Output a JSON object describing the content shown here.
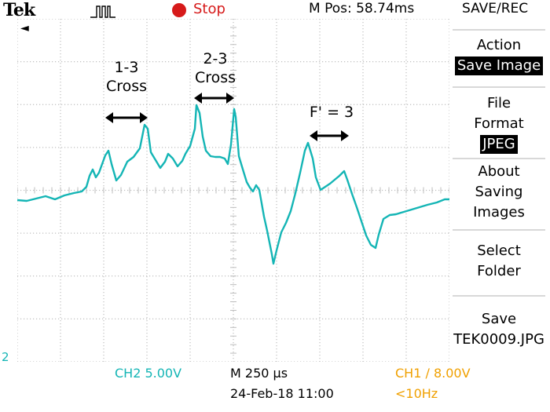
{
  "header": {
    "brand": "Tek",
    "acq_state": "Stop",
    "mpos": "M Pos: 58.74ms",
    "menu_title": "SAVE/REC"
  },
  "annotations": {
    "cross13_line1": "1-3",
    "cross13_line2": "Cross",
    "cross23_line1": "2-3",
    "cross23_line2": "Cross",
    "fprime": "F' = 3"
  },
  "side_menu": {
    "action_label": "Action",
    "action_value": "Save Image",
    "file_format_line1": "File",
    "file_format_line2": "Format",
    "file_format_value": "JPEG",
    "about_line1": "About",
    "about_line2": "Saving",
    "about_line3": "Images",
    "select_line1": "Select",
    "select_line2": "Folder",
    "save_label": "Save",
    "save_file": "TEK0009.JPG"
  },
  "footer": {
    "ch2": "CH2  5.00V",
    "timebase": "M 250 µs",
    "datetime": "24-Feb-18 11:00",
    "ch1": "CH1 ∕ 8.00V",
    "ch1_freq": "<10Hz",
    "ch2_marker": "2"
  },
  "colors": {
    "trace": "#14b5b5",
    "stop": "#d61a1a",
    "ch1": "#f0a000",
    "grid": "#bdbdbd"
  }
}
